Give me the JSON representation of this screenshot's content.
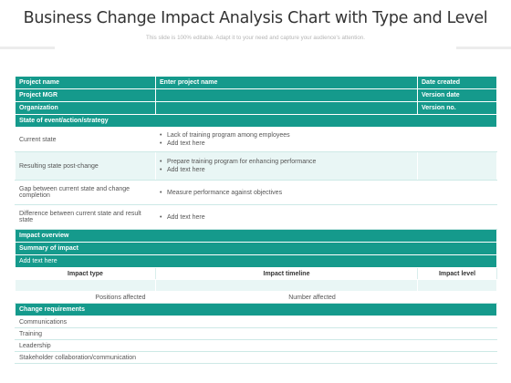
{
  "title": "Business Change Impact Analysis Chart  with Type and Level",
  "subtitle": "This slide is 100% editable. Adapt it to your need and capture your audience's attention.",
  "header_rows": [
    [
      "Project name",
      "Enter project name",
      "Date created"
    ],
    [
      "Project MGR",
      "",
      "Version date"
    ],
    [
      "Organization",
      "",
      "Version no."
    ]
  ],
  "state_section": "State of event/action/strategy",
  "states": [
    {
      "label": "Current state",
      "bullets": [
        "Lack of training program  among employees",
        "Add text here"
      ]
    },
    {
      "label": "Resulting state post-change",
      "bullets": [
        "Prepare  training program  for enhancing performance",
        "Add text here"
      ]
    },
    {
      "label": "Gap between  current state and change completion",
      "bullets": [
        "Measure performance against  objectives"
      ]
    },
    {
      "label": "Difference between  current state and result state",
      "bullets": [
        "Add text here"
      ]
    }
  ],
  "impact_overview": "Impact overview",
  "summary_of_impact": "Summary of impact",
  "add_text": "Add text here",
  "impact_headers": [
    "Impact type",
    "Impact timeline",
    "Impact level"
  ],
  "positions_affected": "Positions affected",
  "number_affected": "Number affected",
  "change_requirements": "Change requirements",
  "requirements": [
    "Communications",
    "Training",
    "Leadership",
    "Stakeholder collaboration/communication"
  ],
  "colors": {
    "accent": "#159a8c",
    "light": "#e9f6f5"
  }
}
